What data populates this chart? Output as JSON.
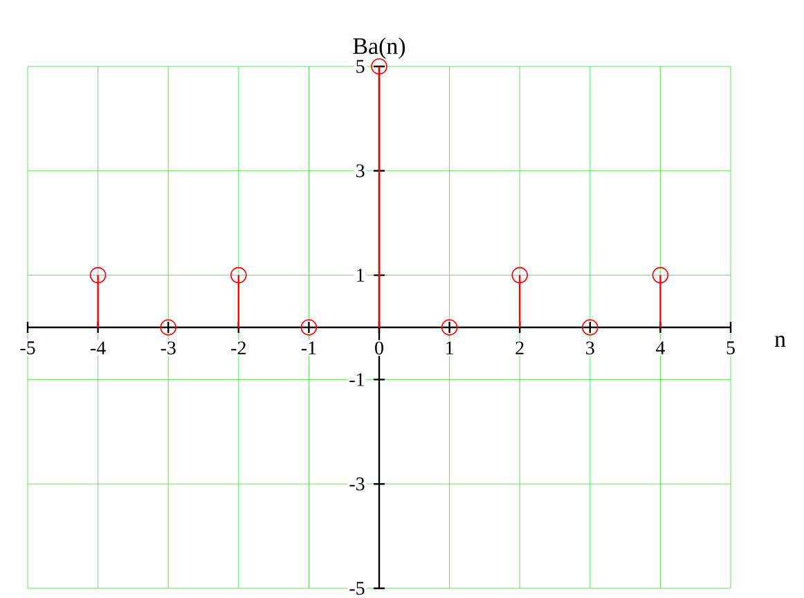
{
  "chart_data": {
    "type": "lollipop",
    "xlabel": "n",
    "ylabel": "Ba(n)",
    "x": [
      -4,
      -3,
      -2,
      -1,
      0,
      1,
      2,
      3,
      4
    ],
    "values": [
      1,
      0,
      1,
      0,
      5,
      0,
      1,
      0,
      1
    ],
    "color": "#ff0000",
    "marker": "circle",
    "xlim": [
      -5,
      5
    ],
    "ylim": [
      -5,
      5
    ],
    "xticks": [
      -5,
      -4,
      -3,
      -2,
      -1,
      0,
      1,
      2,
      3,
      4,
      5
    ],
    "yticks": [
      -5,
      -3,
      -1,
      1,
      3,
      5
    ],
    "grid": true
  }
}
